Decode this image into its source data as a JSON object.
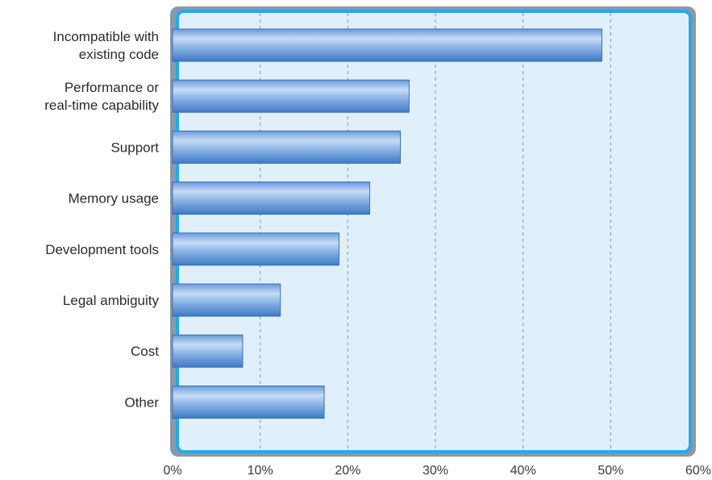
{
  "chart_data": {
    "type": "bar",
    "orientation": "horizontal",
    "categories": [
      [
        "Incompatible with",
        "existing code"
      ],
      [
        "Performance or",
        "real-time capability"
      ],
      [
        "Support"
      ],
      [
        "Memory usage"
      ],
      [
        "Development tools"
      ],
      [
        "Legal ambiguity"
      ],
      [
        "Cost"
      ],
      [
        "Other"
      ]
    ],
    "values": [
      49,
      27,
      26,
      22.5,
      19,
      12.3,
      8,
      17.3
    ],
    "xlim": [
      0,
      60
    ],
    "xticks": [
      0,
      10,
      20,
      30,
      40,
      50,
      60
    ],
    "xtick_labels": [
      "0%",
      "10%",
      "20%",
      "30%",
      "40%",
      "50%",
      "60%"
    ],
    "grid": "vertical dashed",
    "title": "",
    "xlabel": "",
    "ylabel": "",
    "colors": {
      "bar_dark": "#3f79c4",
      "bar_light": "#c6dcf6",
      "frame_inner": "#29a9e6",
      "frame_outer": "#8a98ac",
      "plot_background": "#e0f0fb",
      "grid": "#9aa3ad"
    }
  }
}
